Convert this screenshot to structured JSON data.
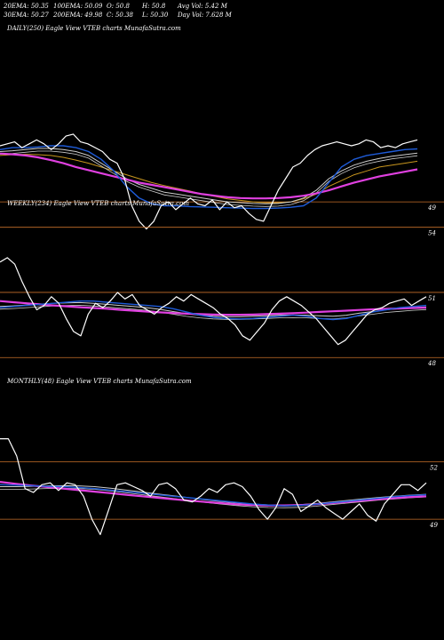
{
  "header": {
    "ema20": "20EMA: 50.35",
    "ema100": "100EMA: 50.09",
    "open": "O: 50.8",
    "high": "H: 50.8",
    "avgvol": "Avg Vol: 5.42  M",
    "ema30": "30EMA: 50.27",
    "ema200": "200EMA: 49.98",
    "close": "C: 50.38",
    "low": "L: 50.30",
    "dayvol": "Day Vol: 7.628 M"
  },
  "colors": {
    "background": "#000000",
    "price": "#ffffff",
    "ema_fast": "#1e5bd8",
    "ema_mid": "#cccccc",
    "ema_slow": "#c8961e",
    "ema_long": "#e040e0",
    "levels": "#c8702a"
  },
  "chart_data": [
    {
      "type": "line",
      "panel": "daily",
      "title": "DAILY(250) Eagle  View  VTEB charts MunafaSutra.com",
      "y_ticks": [
        {
          "label": "49",
          "value": 49
        }
      ],
      "series": [
        {
          "key": "price",
          "values": [
            50.45,
            50.5,
            50.55,
            50.4,
            50.5,
            50.6,
            50.5,
            50.35,
            50.5,
            50.7,
            50.75,
            50.55,
            50.5,
            50.4,
            50.3,
            50.1,
            50.0,
            49.6,
            48.9,
            48.5,
            48.3,
            48.5,
            48.9,
            49.0,
            48.8,
            48.95,
            49.1,
            48.95,
            48.9,
            49.05,
            48.8,
            49.0,
            48.85,
            48.9,
            48.7,
            48.55,
            48.5,
            48.9,
            49.3,
            49.6,
            49.9,
            50.0,
            50.2,
            50.35,
            50.45,
            50.5,
            50.55,
            50.5,
            50.45,
            50.5,
            50.6,
            50.55,
            50.4,
            50.45,
            50.4,
            50.5,
            50.55,
            50.6
          ]
        },
        {
          "key": "ema_fast",
          "values": [
            50.35,
            50.4,
            50.4,
            50.42,
            50.45,
            50.45,
            50.4,
            50.3,
            50.1,
            49.8,
            49.4,
            49.1,
            48.95,
            48.9,
            48.9,
            48.88,
            48.87,
            48.86,
            48.85,
            48.84,
            48.83,
            48.83,
            48.84,
            48.86,
            48.9,
            49.1,
            49.5,
            49.9,
            50.1,
            50.2,
            50.25,
            50.3,
            50.35,
            50.37
          ]
        },
        {
          "key": "ema_mid",
          "values": [
            50.3,
            50.32,
            50.35,
            50.38,
            50.38,
            50.35,
            50.3,
            50.2,
            50.0,
            49.8,
            49.6,
            49.45,
            49.35,
            49.25,
            49.2,
            49.15,
            49.1,
            49.05,
            49.0,
            48.98,
            48.96,
            48.95,
            48.96,
            49.0,
            49.1,
            49.3,
            49.6,
            49.8,
            49.95,
            50.05,
            50.12,
            50.18,
            50.22,
            50.26
          ]
        },
        {
          "key": "ema_slow",
          "values": [
            50.2,
            50.22,
            50.23,
            50.22,
            50.2,
            50.15,
            50.08,
            50.0,
            49.9,
            49.8,
            49.7,
            49.6,
            49.5,
            49.42,
            49.35,
            49.28,
            49.2,
            49.14,
            49.08,
            49.04,
            49.0,
            48.98,
            48.98,
            49.0,
            49.08,
            49.2,
            49.4,
            49.55,
            49.7,
            49.8,
            49.9,
            49.95,
            50.0,
            50.05
          ]
        },
        {
          "key": "ema_long",
          "values": [
            50.25,
            50.23,
            50.2,
            50.15,
            50.08,
            50.0,
            49.9,
            49.82,
            49.74,
            49.66,
            49.58,
            49.5,
            49.44,
            49.38,
            49.32,
            49.26,
            49.2,
            49.16,
            49.12,
            49.1,
            49.09,
            49.09,
            49.1,
            49.12,
            49.16,
            49.22,
            49.3,
            49.4,
            49.5,
            49.58,
            49.66,
            49.72,
            49.78,
            49.84
          ]
        }
      ]
    },
    {
      "type": "line",
      "panel": "weekly",
      "title": "WEEKLY(234) Eagle  View  VTEB charts MunafaSutra.com",
      "y_ticks": [
        {
          "label": "54",
          "value": 54
        },
        {
          "label": "51",
          "value": 51
        },
        {
          "label": "48",
          "value": 48
        }
      ],
      "series": [
        {
          "key": "price",
          "values": [
            52.4,
            52.6,
            52.3,
            51.5,
            50.8,
            50.2,
            50.4,
            50.8,
            50.5,
            49.8,
            49.2,
            49.0,
            50.0,
            50.5,
            50.3,
            50.6,
            51.0,
            50.7,
            50.9,
            50.4,
            50.2,
            50.0,
            50.3,
            50.5,
            50.8,
            50.6,
            50.9,
            50.7,
            50.5,
            50.3,
            50.0,
            49.8,
            49.5,
            49.0,
            48.8,
            49.2,
            49.6,
            50.2,
            50.6,
            50.8,
            50.6,
            50.4,
            50.1,
            49.8,
            49.4,
            49.0,
            48.6,
            48.8,
            49.2,
            49.6,
            50.0,
            50.2,
            50.3,
            50.5,
            50.6,
            50.7,
            50.4,
            50.6,
            50.8
          ]
        },
        {
          "key": "ema_fast",
          "values": [
            50.3,
            50.35,
            50.4,
            50.45,
            50.5,
            50.55,
            50.6,
            50.6,
            50.55,
            50.5,
            50.45,
            50.4,
            50.35,
            50.25,
            50.1,
            49.95,
            49.85,
            49.8,
            49.78,
            49.8,
            49.85,
            49.9,
            49.95,
            49.9,
            49.8,
            49.75,
            49.8,
            49.95,
            50.1,
            50.2,
            50.3,
            50.35,
            50.4
          ]
        },
        {
          "key": "ema_mid",
          "values": [
            50.35,
            50.38,
            50.42,
            50.46,
            50.5,
            50.52,
            50.53,
            50.5,
            50.45,
            50.4,
            50.35,
            50.3,
            50.22,
            50.12,
            50.02,
            49.95,
            49.9,
            49.88,
            49.88,
            49.9,
            49.92,
            49.95,
            49.96,
            49.95,
            49.92,
            49.9,
            49.95,
            50.05,
            50.12,
            50.2,
            50.25,
            50.3,
            50.33
          ]
        },
        {
          "key": "ema_long",
          "values": [
            50.6,
            50.55,
            50.5,
            50.45,
            50.4,
            50.36,
            50.32,
            50.28,
            50.25,
            50.2,
            50.16,
            50.12,
            50.08,
            50.05,
            50.02,
            50.0,
            49.98,
            49.97,
            49.97,
            49.98,
            50.0,
            50.02,
            50.04,
            50.07,
            50.1,
            50.13,
            50.16,
            50.19,
            50.22,
            50.24,
            50.26,
            50.28,
            50.3
          ]
        }
      ]
    },
    {
      "type": "line",
      "panel": "monthly",
      "title": "MONTHLY(48) Eagle  View  VTEB charts MunafaSutra.com",
      "y_ticks": [
        {
          "label": "52",
          "value": 52
        },
        {
          "label": "49",
          "value": 49
        }
      ],
      "series": [
        {
          "key": "price",
          "values": [
            53.2,
            53.2,
            52.3,
            50.6,
            50.4,
            50.8,
            50.9,
            50.5,
            50.9,
            50.8,
            50.2,
            49.0,
            48.2,
            49.5,
            50.8,
            50.9,
            50.7,
            50.5,
            50.2,
            50.8,
            50.9,
            50.6,
            50.0,
            49.9,
            50.2,
            50.6,
            50.4,
            50.8,
            50.9,
            50.7,
            50.2,
            49.5,
            49.0,
            49.6,
            50.6,
            50.3,
            49.4,
            49.7,
            50.0,
            49.6,
            49.3,
            49.0,
            49.4,
            49.8,
            49.2,
            48.9,
            49.8,
            50.3,
            50.8,
            50.8,
            50.5,
            50.9
          ]
        },
        {
          "key": "ema_fast",
          "values": [
            50.8,
            50.78,
            50.75,
            50.72,
            50.7,
            50.66,
            50.6,
            50.52,
            50.44,
            50.36,
            50.28,
            50.2,
            50.12,
            50.04,
            49.96,
            49.88,
            49.8,
            49.74,
            49.7,
            49.72,
            49.78,
            49.86,
            49.94,
            50.02,
            50.1,
            50.18,
            50.24,
            50.28
          ]
        },
        {
          "key": "ema_mid",
          "values": [
            50.7,
            50.7,
            50.72,
            50.74,
            50.75,
            50.74,
            50.7,
            50.62,
            50.52,
            50.42,
            50.32,
            50.22,
            50.12,
            50.02,
            49.93,
            49.85,
            49.79,
            49.75,
            49.74,
            49.76,
            49.82,
            49.9,
            49.98,
            50.06,
            50.14,
            50.2,
            50.26,
            50.3
          ]
        },
        {
          "key": "ema_long",
          "values": [
            50.95,
            50.85,
            50.76,
            50.68,
            50.6,
            50.52,
            50.44,
            50.36,
            50.28,
            50.2,
            50.12,
            50.04,
            49.97,
            49.9,
            49.84,
            49.78,
            49.74,
            49.72,
            49.72,
            49.74,
            49.78,
            49.84,
            49.9,
            49.97,
            50.04,
            50.1,
            50.16,
            50.2
          ]
        }
      ]
    }
  ]
}
